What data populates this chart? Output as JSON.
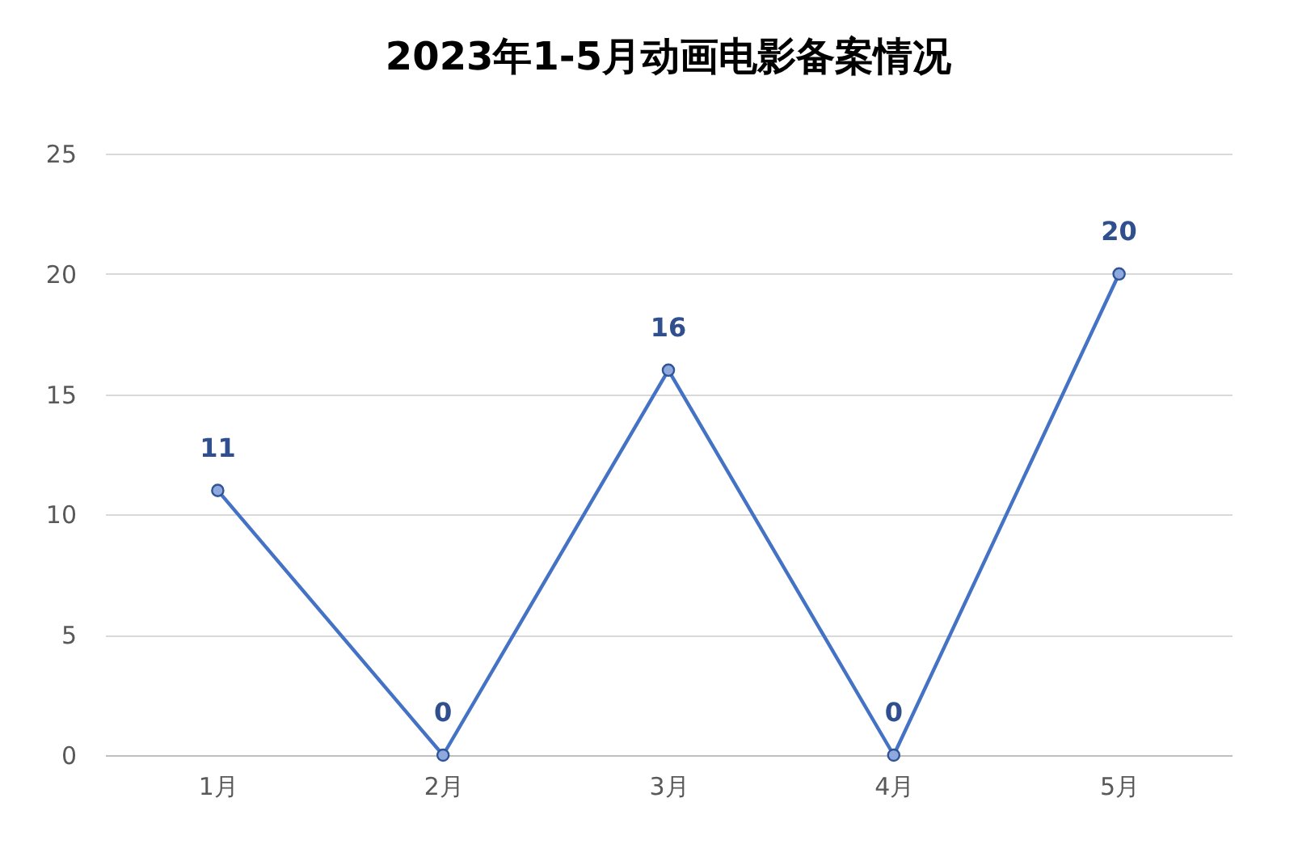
{
  "chart_data": {
    "type": "line",
    "title": "2023年1-5月动画电影备案情况",
    "categories": [
      "1月",
      "2月",
      "3月",
      "4月",
      "5月"
    ],
    "values": [
      11,
      0,
      16,
      0,
      20
    ],
    "color": "#4472c4",
    "ylim": [
      0,
      25
    ],
    "yticks": [
      0,
      5,
      10,
      15,
      20,
      25
    ],
    "grid": "y",
    "marker": "circle",
    "data_labels": true
  }
}
